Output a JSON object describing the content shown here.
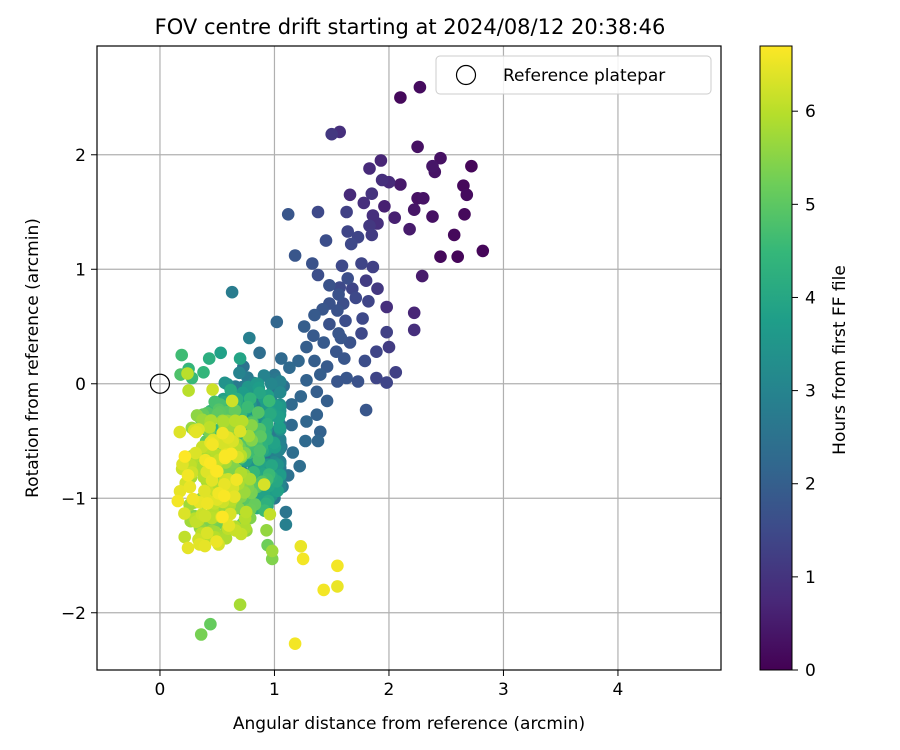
{
  "chart_data": {
    "type": "scatter",
    "title": "FOV centre drift starting at 2024/08/12 20:38:46",
    "xlabel": "Angular distance from reference (arcmin)",
    "ylabel": "Rotation from reference (arcmin)",
    "xlim": [
      -0.55,
      4.9
    ],
    "ylim": [
      -2.5,
      2.95
    ],
    "xticks": [
      0,
      1,
      2,
      3,
      4
    ],
    "yticks": [
      -2,
      -1,
      0,
      1,
      2
    ],
    "grid": true,
    "legend": {
      "position": "top-right",
      "entries": [
        "Reference platepar"
      ]
    },
    "reference_point": {
      "label": "Reference platepar",
      "x": 0,
      "y": 0
    },
    "colorbar": {
      "label": "Hours from first FF file",
      "colormap": "viridis",
      "range": [
        0,
        6.7
      ],
      "ticks": [
        0,
        1,
        2,
        3,
        4,
        5,
        6
      ]
    },
    "colormap_stops": [
      "#440154",
      "#482878",
      "#3e4989",
      "#31688e",
      "#26828e",
      "#1f9e89",
      "#35b779",
      "#6ece58",
      "#b5de2b",
      "#fde725"
    ],
    "outer_points": [
      [
        2.1,
        2.5,
        0.15
      ],
      [
        2.27,
        2.59,
        0.2
      ],
      [
        1.57,
        2.2,
        0.9
      ],
      [
        1.5,
        2.18,
        1.1
      ],
      [
        2.25,
        2.07,
        0.3
      ],
      [
        1.93,
        1.95,
        0.7
      ],
      [
        2.45,
        1.97,
        0.3
      ],
      [
        2.38,
        1.9,
        0.4
      ],
      [
        2.72,
        1.9,
        0.1
      ],
      [
        1.83,
        1.88,
        0.8
      ],
      [
        2.4,
        1.85,
        0.35
      ],
      [
        1.94,
        1.78,
        0.9
      ],
      [
        2.0,
        1.76,
        0.8
      ],
      [
        2.1,
        1.74,
        0.45
      ],
      [
        2.65,
        1.73,
        0.15
      ],
      [
        2.68,
        1.65,
        0.2
      ],
      [
        1.85,
        1.66,
        1.0
      ],
      [
        1.66,
        1.65,
        0.8
      ],
      [
        2.25,
        1.62,
        0.3
      ],
      [
        2.3,
        1.62,
        0.35
      ],
      [
        1.78,
        1.58,
        0.9
      ],
      [
        1.96,
        1.55,
        0.6
      ],
      [
        2.22,
        1.52,
        0.4
      ],
      [
        1.38,
        1.5,
        1.5
      ],
      [
        1.12,
        1.48,
        1.8
      ],
      [
        1.63,
        1.5,
        1.3
      ],
      [
        1.86,
        1.47,
        0.9
      ],
      [
        2.38,
        1.46,
        0.3
      ],
      [
        2.66,
        1.48,
        0.15
      ],
      [
        2.05,
        1.45,
        0.6
      ],
      [
        1.9,
        1.4,
        0.9
      ],
      [
        2.18,
        1.35,
        0.5
      ],
      [
        1.64,
        1.33,
        1.4
      ],
      [
        1.83,
        1.38,
        1.1
      ],
      [
        2.57,
        1.3,
        0.15
      ],
      [
        1.85,
        1.3,
        1.2
      ],
      [
        1.45,
        1.25,
        1.6
      ],
      [
        1.73,
        1.28,
        1.4
      ],
      [
        1.67,
        1.22,
        1.5
      ],
      [
        2.6,
        1.11,
        0.1
      ],
      [
        2.45,
        1.11,
        0.15
      ],
      [
        2.82,
        1.16,
        0.1
      ],
      [
        1.18,
        1.12,
        1.8
      ],
      [
        1.33,
        1.05,
        1.7
      ],
      [
        1.86,
        1.02,
        1.3
      ],
      [
        1.59,
        1.03,
        1.5
      ],
      [
        1.76,
        1.05,
        1.4
      ],
      [
        2.29,
        0.94,
        0.5
      ],
      [
        1.38,
        0.95,
        1.6
      ],
      [
        1.64,
        0.92,
        1.6
      ],
      [
        1.8,
        0.9,
        1.2
      ],
      [
        1.48,
        0.86,
        1.7
      ],
      [
        1.57,
        0.84,
        1.5
      ],
      [
        1.68,
        0.83,
        1.4
      ],
      [
        1.9,
        0.83,
        1.1
      ],
      [
        0.63,
        0.8,
        2.8
      ],
      [
        1.56,
        0.78,
        1.7
      ],
      [
        1.71,
        0.75,
        1.5
      ],
      [
        1.82,
        0.72,
        1.4
      ],
      [
        1.48,
        0.7,
        1.7
      ],
      [
        1.6,
        0.7,
        1.6
      ],
      [
        1.42,
        0.65,
        1.8
      ],
      [
        1.98,
        0.67,
        0.9
      ],
      [
        1.55,
        0.64,
        1.7
      ],
      [
        2.22,
        0.62,
        0.7
      ],
      [
        1.35,
        0.6,
        1.9
      ],
      [
        1.77,
        0.57,
        1.5
      ],
      [
        1.62,
        0.55,
        1.6
      ],
      [
        1.02,
        0.54,
        2.2
      ],
      [
        1.48,
        0.52,
        1.7
      ],
      [
        1.26,
        0.5,
        2.0
      ],
      [
        2.22,
        0.47,
        0.9
      ],
      [
        1.56,
        0.44,
        1.8
      ],
      [
        1.76,
        0.44,
        1.5
      ],
      [
        1.98,
        0.45,
        1.3
      ],
      [
        1.34,
        0.42,
        1.9
      ],
      [
        1.58,
        0.4,
        1.8
      ],
      [
        1.43,
        0.36,
        1.9
      ],
      [
        1.66,
        0.36,
        1.7
      ],
      [
        0.78,
        0.4,
        2.9
      ],
      [
        1.28,
        0.32,
        2.0
      ],
      [
        2.0,
        0.32,
        1.2
      ],
      [
        1.54,
        0.28,
        1.8
      ],
      [
        1.89,
        0.28,
        1.4
      ],
      [
        0.53,
        0.27,
        3.8
      ],
      [
        0.87,
        0.27,
        2.4
      ],
      [
        1.06,
        0.22,
        2.3
      ],
      [
        1.61,
        0.22,
        1.8
      ],
      [
        1.21,
        0.2,
        2.2
      ],
      [
        1.35,
        0.2,
        2.0
      ],
      [
        1.79,
        0.2,
        1.6
      ],
      [
        1.46,
        0.15,
        1.9
      ],
      [
        1.13,
        0.14,
        2.3
      ],
      [
        2.06,
        0.1,
        1.3
      ],
      [
        1.4,
        0.08,
        2.0
      ],
      [
        1.63,
        0.05,
        1.8
      ],
      [
        1.89,
        0.05,
        1.4
      ],
      [
        1.28,
        0.03,
        2.1
      ],
      [
        1.55,
        0.02,
        1.8
      ],
      [
        1.73,
        0.02,
        1.7
      ],
      [
        1.98,
        0.01,
        1.4
      ],
      [
        1.08,
        -0.02,
        2.4
      ],
      [
        1.37,
        -0.07,
        2.0
      ],
      [
        1.23,
        -0.11,
        2.2
      ],
      [
        1.46,
        -0.15,
        2.0
      ],
      [
        1.15,
        -0.18,
        2.3
      ],
      [
        1.8,
        -0.23,
        1.8
      ],
      [
        1.37,
        -0.27,
        2.1
      ],
      [
        1.28,
        -0.33,
        2.2
      ],
      [
        1.15,
        -0.36,
        2.3
      ],
      [
        1.4,
        -0.42,
        2.1
      ],
      [
        1.27,
        -0.5,
        2.3
      ],
      [
        1.38,
        -0.5,
        2.2
      ],
      [
        1.06,
        -0.55,
        2.5
      ],
      [
        1.16,
        -0.6,
        2.4
      ],
      [
        1.22,
        -0.72,
        2.4
      ],
      [
        1.12,
        -0.8,
        2.5
      ],
      [
        1.07,
        -0.9,
        2.6
      ],
      [
        1.0,
        -1.0,
        2.7
      ],
      [
        1.1,
        -1.12,
        2.6
      ],
      [
        1.1,
        -1.23,
        2.9
      ],
      [
        0.19,
        0.25,
        4.6
      ],
      [
        0.25,
        0.13,
        4.4
      ],
      [
        0.43,
        0.22,
        4.2
      ],
      [
        0.18,
        0.08,
        4.8
      ],
      [
        0.28,
        0.05,
        4.5
      ],
      [
        0.38,
        0.1,
        4.4
      ],
      [
        0.7,
        0.22,
        3.9
      ]
    ],
    "yellow_points": [
      [
        1.23,
        -1.42,
        6.5
      ],
      [
        1.25,
        -1.53,
        6.6
      ],
      [
        1.55,
        -1.59,
        6.6
      ],
      [
        1.55,
        -1.77,
        6.5
      ],
      [
        1.43,
        -1.8,
        6.6
      ],
      [
        1.18,
        -2.27,
        6.6
      ],
      [
        0.7,
        -1.93,
        5.8
      ],
      [
        0.36,
        -2.19,
        5.3
      ],
      [
        0.44,
        -2.1,
        5.1
      ],
      [
        0.63,
        -0.15,
        6.2
      ],
      [
        0.46,
        -0.05,
        6.2
      ],
      [
        0.91,
        -0.88,
        6.3
      ],
      [
        0.96,
        -1.14,
        6.1
      ],
      [
        0.93,
        -1.28,
        5.6
      ],
      [
        0.94,
        -1.41,
        5.2
      ],
      [
        0.98,
        -1.46,
        5.7
      ],
      [
        0.98,
        -1.53,
        5.4
      ],
      [
        0.25,
        -0.06,
        6.0
      ],
      [
        0.24,
        0.09,
        6.0
      ]
    ],
    "cluster_summary": {
      "x_range": [
        0.0,
        1.0
      ],
      "y_range": [
        -1.8,
        0.2
      ],
      "hours_range": [
        2.5,
        6.7
      ],
      "note": ""
    }
  }
}
